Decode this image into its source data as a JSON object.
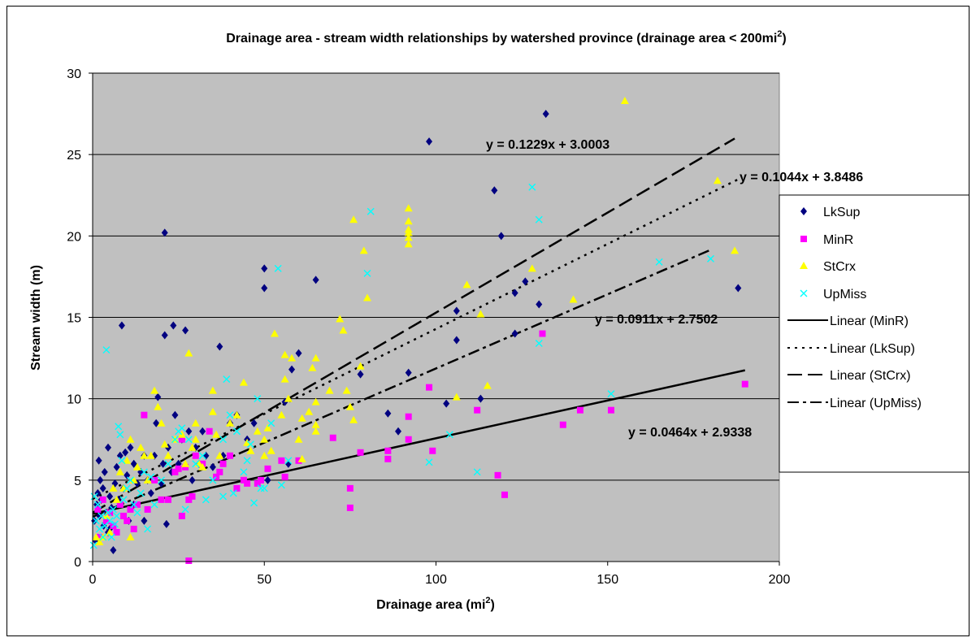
{
  "chart_data": {
    "type": "scatter",
    "title_main": "Drainage area - stream width relationships by watershed province (drainage area < 200mi",
    "title_sup": "2",
    "title_tail": ")",
    "xlabel_main": "Drainage area (mi",
    "xlabel_sup": "2",
    "xlabel_tail": ")",
    "ylabel": "Stream width (m)",
    "xlim": [
      0,
      200
    ],
    "ylim": [
      0,
      30
    ],
    "x_ticks": [
      "0",
      "50",
      "100",
      "150",
      "200"
    ],
    "y_ticks": [
      "0",
      "5",
      "10",
      "15",
      "20",
      "25",
      "30"
    ],
    "grid": "horizontal",
    "plot_background": "#c0c0c0",
    "legend_position": "right",
    "series": [
      {
        "name": "LkSup",
        "marker": "diamond",
        "color": "#000080",
        "points": [
          [
            0.5,
            2.5
          ],
          [
            0.8,
            1.3
          ],
          [
            1.2,
            3.5
          ],
          [
            1.5,
            4.2
          ],
          [
            1.8,
            6.2
          ],
          [
            2,
            2.8
          ],
          [
            2.2,
            5
          ],
          [
            2.5,
            3.8
          ],
          [
            3,
            4.5
          ],
          [
            3.2,
            2.2
          ],
          [
            3.5,
            5.5
          ],
          [
            4,
            3
          ],
          [
            4.5,
            1.8
          ],
          [
            4.5,
            7
          ],
          [
            5,
            4
          ],
          [
            5,
            2
          ],
          [
            5.5,
            3.3
          ],
          [
            6,
            0.7
          ],
          [
            6.5,
            4.8
          ],
          [
            7,
            5.8
          ],
          [
            7.5,
            3.8
          ],
          [
            8,
            6.5
          ],
          [
            8.5,
            14.5
          ],
          [
            9,
            4.5
          ],
          [
            9.5,
            6.7
          ],
          [
            10,
            5.3
          ],
          [
            10.5,
            2.5
          ],
          [
            11,
            7
          ],
          [
            12,
            3.5
          ],
          [
            12,
            6
          ],
          [
            13,
            4.8
          ],
          [
            14,
            5.5
          ],
          [
            15,
            2.5
          ],
          [
            15,
            6.5
          ],
          [
            16,
            5
          ],
          [
            17,
            4.2
          ],
          [
            18,
            6.5
          ],
          [
            18.5,
            8.5
          ],
          [
            19,
            10.1
          ],
          [
            20,
            4.8
          ],
          [
            20.5,
            6
          ],
          [
            21,
            20.2
          ],
          [
            21,
            13.9
          ],
          [
            21.5,
            2.3
          ],
          [
            22,
            7
          ],
          [
            23,
            5.5
          ],
          [
            23.5,
            14.5
          ],
          [
            24,
            9
          ],
          [
            25,
            6
          ],
          [
            26,
            7.5
          ],
          [
            27,
            14.2
          ],
          [
            28,
            8
          ],
          [
            29,
            5
          ],
          [
            30,
            7
          ],
          [
            31,
            6
          ],
          [
            32,
            8
          ],
          [
            33,
            6.5
          ],
          [
            35,
            5.8
          ],
          [
            37,
            13.2
          ],
          [
            38,
            6.5
          ],
          [
            40,
            8.5
          ],
          [
            42,
            9
          ],
          [
            45,
            7.5
          ],
          [
            47,
            8.5
          ],
          [
            50,
            18
          ],
          [
            50,
            16.8
          ],
          [
            51,
            5
          ],
          [
            56,
            9.8
          ],
          [
            57,
            6
          ],
          [
            58,
            11.8
          ],
          [
            60,
            12.8
          ],
          [
            65,
            17.3
          ],
          [
            78,
            11.5
          ],
          [
            86,
            9.1
          ],
          [
            89,
            8
          ],
          [
            92,
            11.6
          ],
          [
            98,
            25.8
          ],
          [
            103,
            9.7
          ],
          [
            106,
            15.4
          ],
          [
            106,
            13.6
          ],
          [
            113,
            10
          ],
          [
            117,
            22.8
          ],
          [
            119,
            20
          ],
          [
            123,
            16.5
          ],
          [
            123,
            14
          ],
          [
            126,
            17.2
          ],
          [
            130,
            15.8
          ],
          [
            132,
            27.5
          ],
          [
            188,
            16.8
          ]
        ]
      },
      {
        "name": "MinR",
        "marker": "square",
        "color": "#ff00ff",
        "points": [
          [
            1.5,
            3.2
          ],
          [
            2,
            1.5
          ],
          [
            3,
            3.8
          ],
          [
            4,
            2.5
          ],
          [
            5,
            3
          ],
          [
            6,
            2.2
          ],
          [
            7,
            1.8
          ],
          [
            8,
            3.5
          ],
          [
            9,
            2.8
          ],
          [
            10,
            2.5
          ],
          [
            11,
            3.2
          ],
          [
            12,
            2
          ],
          [
            13,
            3.5
          ],
          [
            15,
            9
          ],
          [
            16,
            3.2
          ],
          [
            18,
            5
          ],
          [
            20,
            3.8
          ],
          [
            22,
            3.8
          ],
          [
            24,
            5.5
          ],
          [
            25,
            5.7
          ],
          [
            26,
            2.8
          ],
          [
            26,
            7.5
          ],
          [
            27,
            5.8
          ],
          [
            28,
            3.8
          ],
          [
            28,
            0.05
          ],
          [
            29,
            4
          ],
          [
            30,
            6.5
          ],
          [
            32,
            6
          ],
          [
            34,
            8
          ],
          [
            36,
            5.2
          ],
          [
            37,
            5.5
          ],
          [
            38,
            6
          ],
          [
            40,
            6.5
          ],
          [
            42,
            4.5
          ],
          [
            44,
            5
          ],
          [
            45,
            4.8
          ],
          [
            48,
            4.8
          ],
          [
            49,
            5
          ],
          [
            51,
            5.7
          ],
          [
            55,
            6.2
          ],
          [
            56,
            5.2
          ],
          [
            60,
            6.2
          ],
          [
            70,
            7.6
          ],
          [
            75,
            4.5
          ],
          [
            75,
            3.3
          ],
          [
            78,
            6.7
          ],
          [
            86,
            6.3
          ],
          [
            86,
            6.8
          ],
          [
            92,
            8.9
          ],
          [
            92,
            7.5
          ],
          [
            98,
            10.7
          ],
          [
            99,
            6.8
          ],
          [
            112,
            9.3
          ],
          [
            118,
            5.3
          ],
          [
            120,
            4.1
          ],
          [
            131,
            14
          ],
          [
            137,
            8.4
          ],
          [
            142,
            9.3
          ],
          [
            151,
            9.3
          ],
          [
            190,
            10.9
          ]
        ]
      },
      {
        "name": "StCrx",
        "marker": "triangle",
        "color": "#ffff00",
        "points": [
          [
            1,
            1.5
          ],
          [
            2,
            1.2
          ],
          [
            3,
            1.5
          ],
          [
            4,
            2.8
          ],
          [
            5,
            1.8
          ],
          [
            6,
            4.5
          ],
          [
            7,
            3.8
          ],
          [
            8,
            5.5
          ],
          [
            9,
            4.5
          ],
          [
            10,
            6.2
          ],
          [
            11,
            1.5
          ],
          [
            11,
            7.5
          ],
          [
            12,
            5
          ],
          [
            13,
            5.8
          ],
          [
            14,
            7
          ],
          [
            15,
            6.5
          ],
          [
            16,
            5
          ],
          [
            17,
            6.5
          ],
          [
            18,
            10.5
          ],
          [
            19,
            9.5
          ],
          [
            20,
            8.5
          ],
          [
            21,
            7.2
          ],
          [
            22,
            6.5
          ],
          [
            24,
            7.5
          ],
          [
            26,
            7.8
          ],
          [
            27,
            6
          ],
          [
            28,
            12.8
          ],
          [
            29,
            7
          ],
          [
            30,
            7.5
          ],
          [
            30,
            8.5
          ],
          [
            31,
            6
          ],
          [
            32,
            5.8
          ],
          [
            35,
            10.5
          ],
          [
            35,
            9.2
          ],
          [
            36,
            7.8
          ],
          [
            37,
            6.5
          ],
          [
            40,
            8.5
          ],
          [
            42,
            9
          ],
          [
            44,
            11
          ],
          [
            45,
            7.3
          ],
          [
            46,
            6.8
          ],
          [
            48,
            8
          ],
          [
            50,
            7.5
          ],
          [
            50,
            6.5
          ],
          [
            51,
            8.2
          ],
          [
            52,
            6.8
          ],
          [
            53,
            14
          ],
          [
            55,
            9
          ],
          [
            56,
            12.7
          ],
          [
            56,
            11.2
          ],
          [
            57,
            10
          ],
          [
            58,
            12.5
          ],
          [
            60,
            7.5
          ],
          [
            61,
            8.8
          ],
          [
            61,
            6.3
          ],
          [
            63,
            9.2
          ],
          [
            64,
            11.9
          ],
          [
            65,
            12.5
          ],
          [
            65,
            9.8
          ],
          [
            65,
            8.4
          ],
          [
            65,
            8
          ],
          [
            69,
            10.5
          ],
          [
            72,
            14.9
          ],
          [
            73,
            14.2
          ],
          [
            74,
            10.5
          ],
          [
            75,
            9.5
          ],
          [
            76,
            8.7
          ],
          [
            76,
            21
          ],
          [
            78,
            12
          ],
          [
            79,
            19.1
          ],
          [
            80,
            16.2
          ],
          [
            92,
            21.7
          ],
          [
            92,
            20.9
          ],
          [
            92,
            20.4
          ],
          [
            92,
            19.9
          ],
          [
            92,
            19.5
          ],
          [
            92,
            20.2
          ],
          [
            106,
            10.1
          ],
          [
            109,
            17
          ],
          [
            113,
            15.2
          ],
          [
            115,
            10.8
          ],
          [
            128,
            18
          ],
          [
            140,
            16.1
          ],
          [
            155,
            28.3
          ],
          [
            182,
            23.4
          ],
          [
            187,
            19.1
          ]
        ]
      },
      {
        "name": "UpMiss",
        "marker": "x",
        "color": "#00ffff",
        "points": [
          [
            0.3,
            1
          ],
          [
            0.5,
            4
          ],
          [
            1,
            2.5
          ],
          [
            1.5,
            3.5
          ],
          [
            2,
            2
          ],
          [
            2.5,
            2.8
          ],
          [
            3,
            1.5
          ],
          [
            3.5,
            2.2
          ],
          [
            4,
            13
          ],
          [
            4.5,
            3
          ],
          [
            5,
            2.5
          ],
          [
            5.5,
            1.5
          ],
          [
            6,
            3.2
          ],
          [
            6.5,
            2.3
          ],
          [
            7,
            2.8
          ],
          [
            7.5,
            8.3
          ],
          [
            8,
            7.8
          ],
          [
            8.5,
            6.2
          ],
          [
            9,
            3.8
          ],
          [
            10,
            4.5
          ],
          [
            11,
            5
          ],
          [
            12,
            3.5
          ],
          [
            13,
            3
          ],
          [
            14,
            4.2
          ],
          [
            15,
            5.5
          ],
          [
            16,
            2
          ],
          [
            17,
            5.2
          ],
          [
            18,
            3.5
          ],
          [
            20,
            5
          ],
          [
            22,
            6
          ],
          [
            24,
            7.5
          ],
          [
            25,
            8
          ],
          [
            26,
            8.2
          ],
          [
            27,
            3.2
          ],
          [
            28,
            7.5
          ],
          [
            30,
            6
          ],
          [
            32,
            6.5
          ],
          [
            33,
            3.8
          ],
          [
            35,
            5
          ],
          [
            38,
            7.5
          ],
          [
            38,
            4
          ],
          [
            39,
            11.2
          ],
          [
            40,
            9
          ],
          [
            41,
            4.2
          ],
          [
            42,
            8
          ],
          [
            44,
            5.5
          ],
          [
            45,
            6.2
          ],
          [
            46,
            7.2
          ],
          [
            47,
            3.6
          ],
          [
            48,
            10
          ],
          [
            49,
            4.5
          ],
          [
            50,
            4.5
          ],
          [
            52,
            8.5
          ],
          [
            54,
            18
          ],
          [
            55,
            4.7
          ],
          [
            57,
            6.2
          ],
          [
            80,
            17.7
          ],
          [
            81,
            21.5
          ],
          [
            98,
            6.1
          ],
          [
            104,
            7.8
          ],
          [
            112,
            5.5
          ],
          [
            128,
            23
          ],
          [
            130,
            21
          ],
          [
            130,
            13.4
          ],
          [
            151,
            10.3
          ],
          [
            165,
            18.4
          ],
          [
            180,
            18.6
          ]
        ]
      }
    ],
    "trendlines": [
      {
        "name": "Linear (MinR)",
        "style": "solid",
        "slope": 0.0464,
        "intercept": 2.9338,
        "x_end": 190
      },
      {
        "name": "Linear (LkSup)",
        "style": "dotted",
        "slope": 0.1044,
        "intercept": 3.8486,
        "x_end": 188
      },
      {
        "name": "Linear (StCrx)",
        "style": "dashed",
        "slope": 0.1229,
        "intercept": 3.0003,
        "x_end": 187
      },
      {
        "name": "Linear (UpMiss)",
        "style": "dash-dot",
        "slope": 0.0911,
        "intercept": 2.7502,
        "x_end": 180
      }
    ],
    "equations": [
      {
        "text": "y = 0.1229x + 3.0003"
      },
      {
        "text": "y = 0.1044x + 3.8486"
      },
      {
        "text": "y = 0.0911x + 2.7502"
      },
      {
        "text": "y = 0.0464x + 2.9338"
      }
    ],
    "legend": [
      "LkSup",
      "MinR",
      "StCrx",
      "UpMiss",
      "Linear (MinR)",
      "Linear (LkSup)",
      "Linear (StCrx)",
      "Linear (UpMiss)"
    ]
  }
}
